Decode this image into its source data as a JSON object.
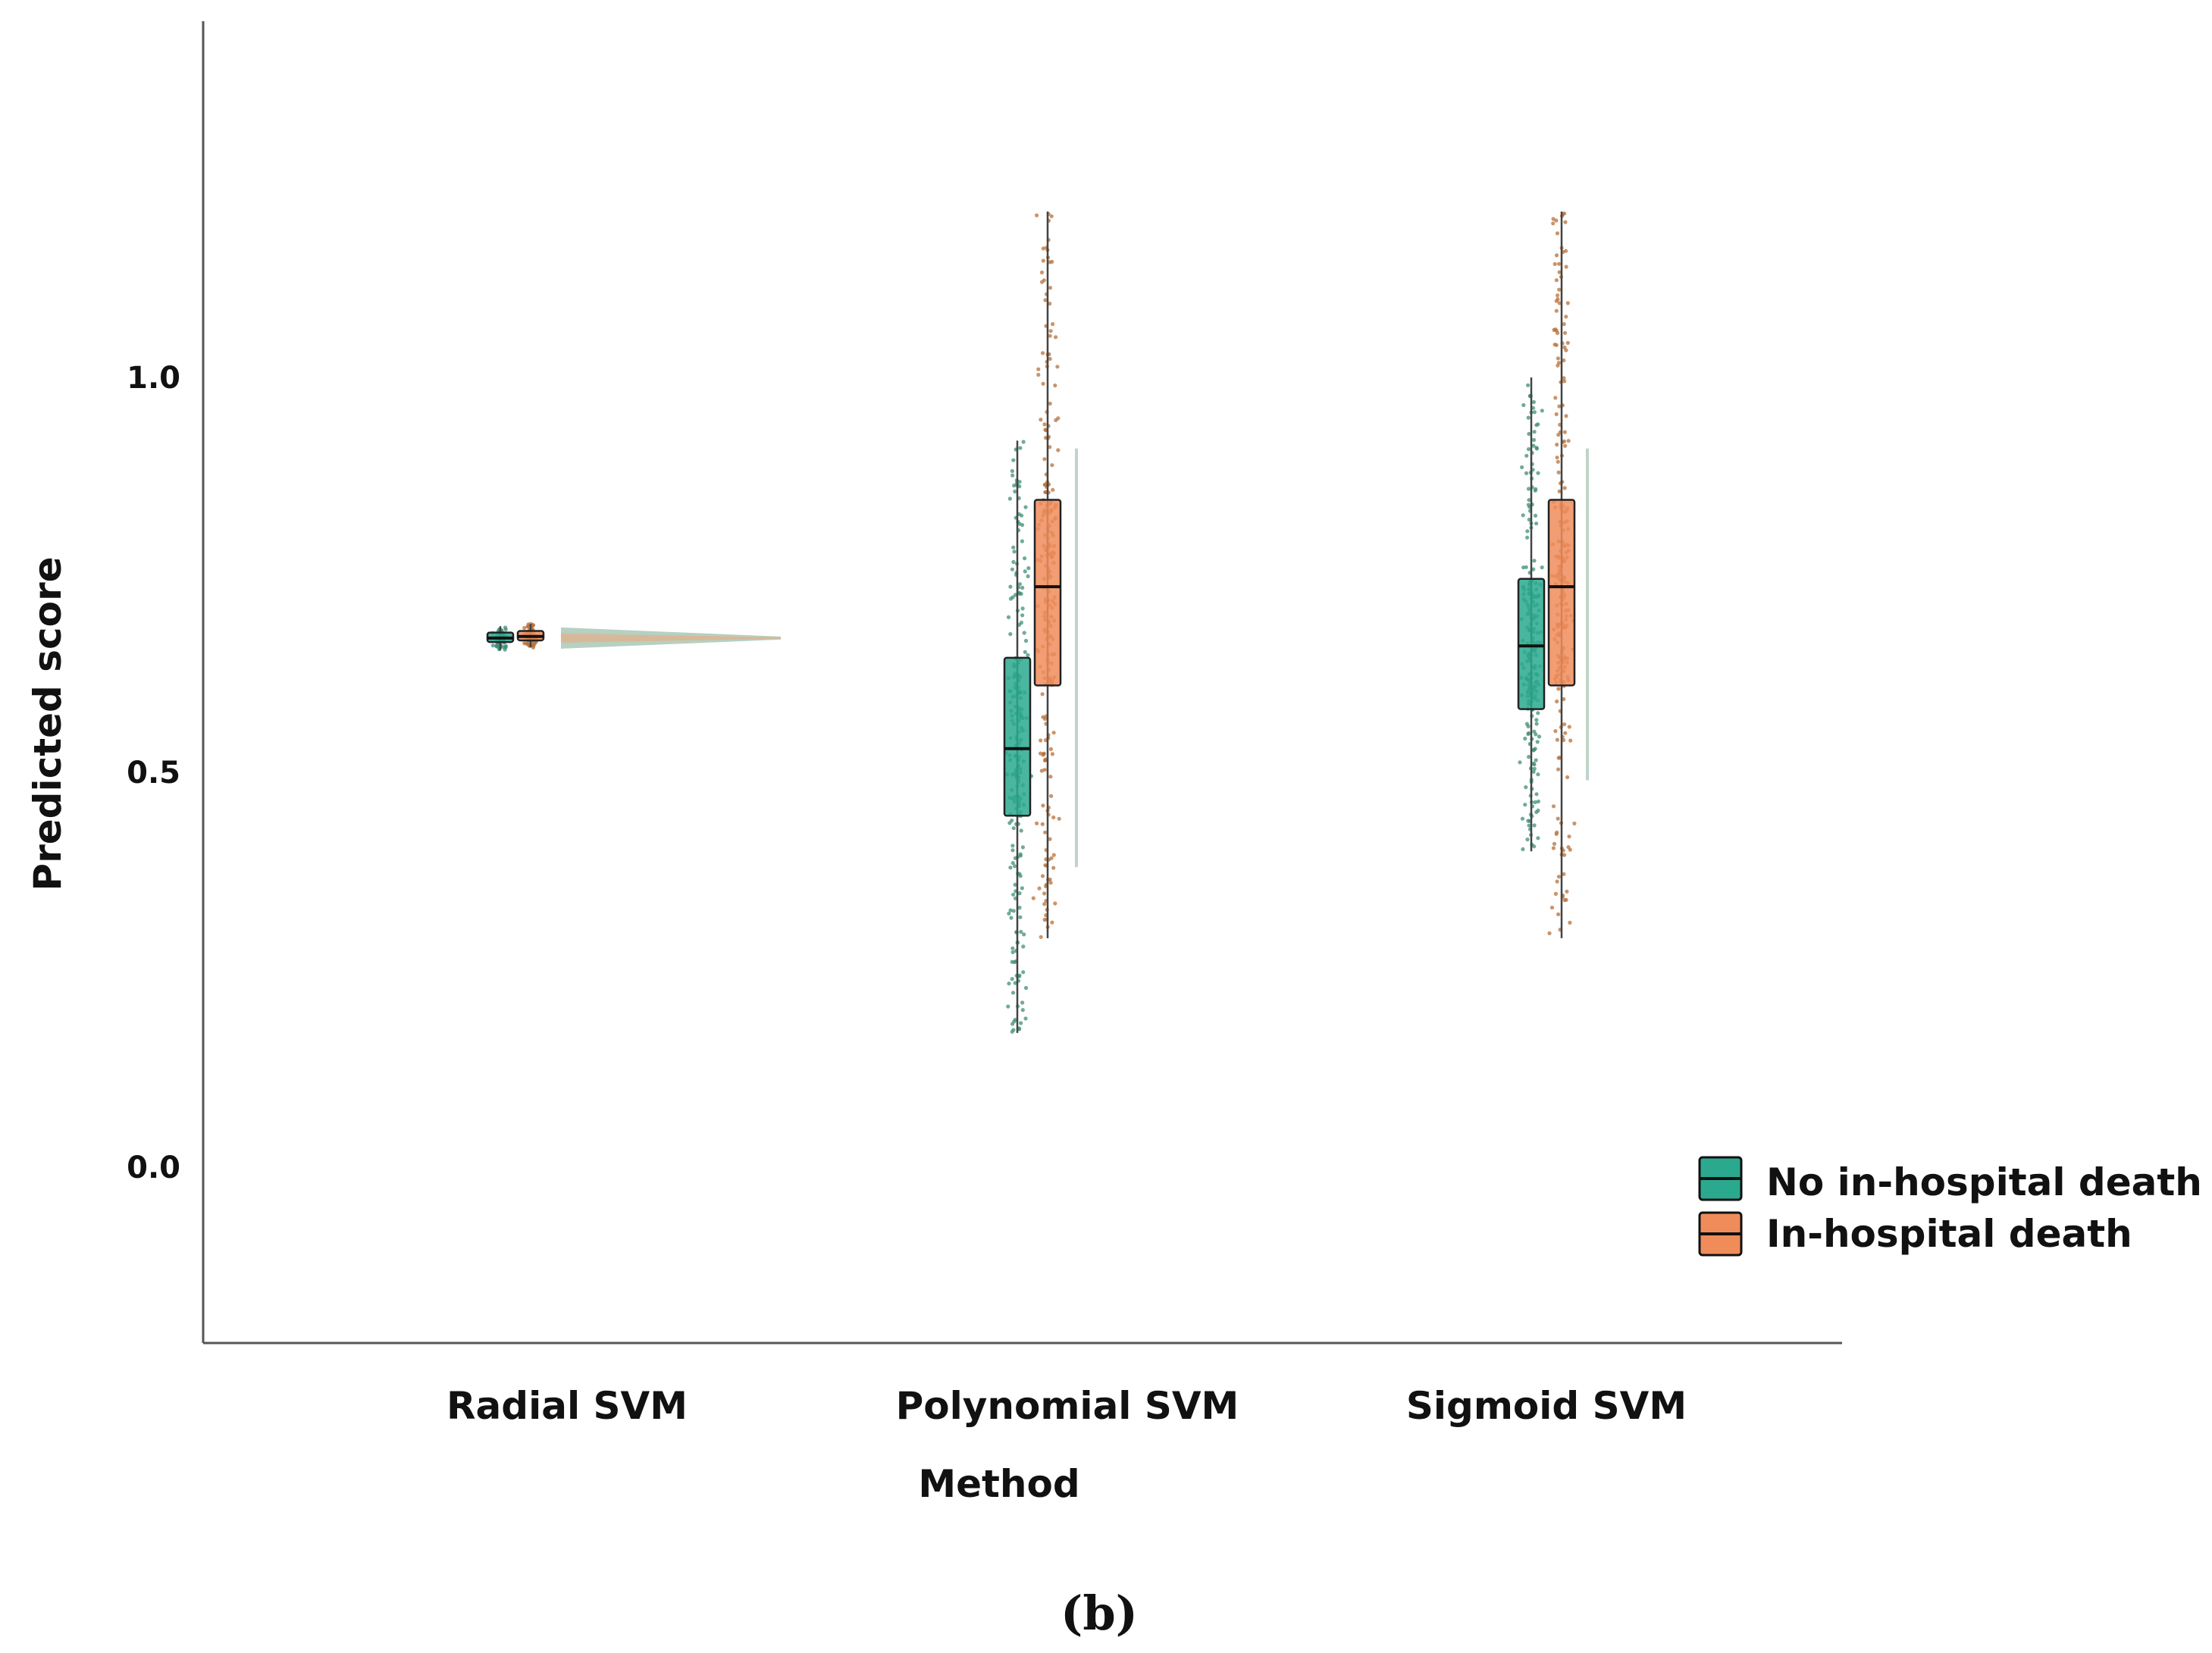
{
  "panel_label": "(b)",
  "colors": {
    "no_death": "#2aa98f",
    "death": "#f08c5a",
    "axis": "#555555",
    "whisker": "#444444"
  },
  "chart_data": {
    "type": "box",
    "xlabel": "Method",
    "ylabel": "Predicted score",
    "categories": [
      "Radial SVM",
      "Polynomial SVM",
      "Sigmoid SVM"
    ],
    "yticks": [
      0.0,
      0.5,
      1.0
    ],
    "ytick_labels": [
      "0.0",
      "0.5",
      "1.0"
    ],
    "ylim": [
      -0.22,
      1.45
    ],
    "legend_position": "bottom-right",
    "series": [
      {
        "name": "No in-hospital death",
        "boxes": [
          {
            "min": 0.655,
            "q1": 0.665,
            "median": 0.67,
            "q3": 0.677,
            "max": 0.685
          },
          {
            "min": 0.17,
            "q1": 0.445,
            "median": 0.53,
            "q3": 0.645,
            "max": 0.92
          },
          {
            "min": 0.4,
            "q1": 0.58,
            "median": 0.66,
            "q3": 0.745,
            "max": 1.0
          }
        ],
        "density_range": [
          [
            0.66,
            0.68
          ],
          [
            0.38,
            0.91
          ],
          [
            0.49,
            0.91
          ]
        ]
      },
      {
        "name": "In-hospital death",
        "boxes": [
          {
            "min": 0.658,
            "q1": 0.667,
            "median": 0.672,
            "q3": 0.679,
            "max": 0.688
          },
          {
            "min": 0.29,
            "q1": 0.61,
            "median": 0.735,
            "q3": 0.845,
            "max": 1.21
          },
          {
            "min": 0.29,
            "q1": 0.61,
            "median": 0.735,
            "q3": 0.845,
            "max": 1.21
          }
        ],
        "density_range": [
          [
            0.66,
            0.68
          ],
          [
            0.38,
            0.91
          ],
          [
            0.49,
            0.91
          ]
        ]
      }
    ]
  }
}
